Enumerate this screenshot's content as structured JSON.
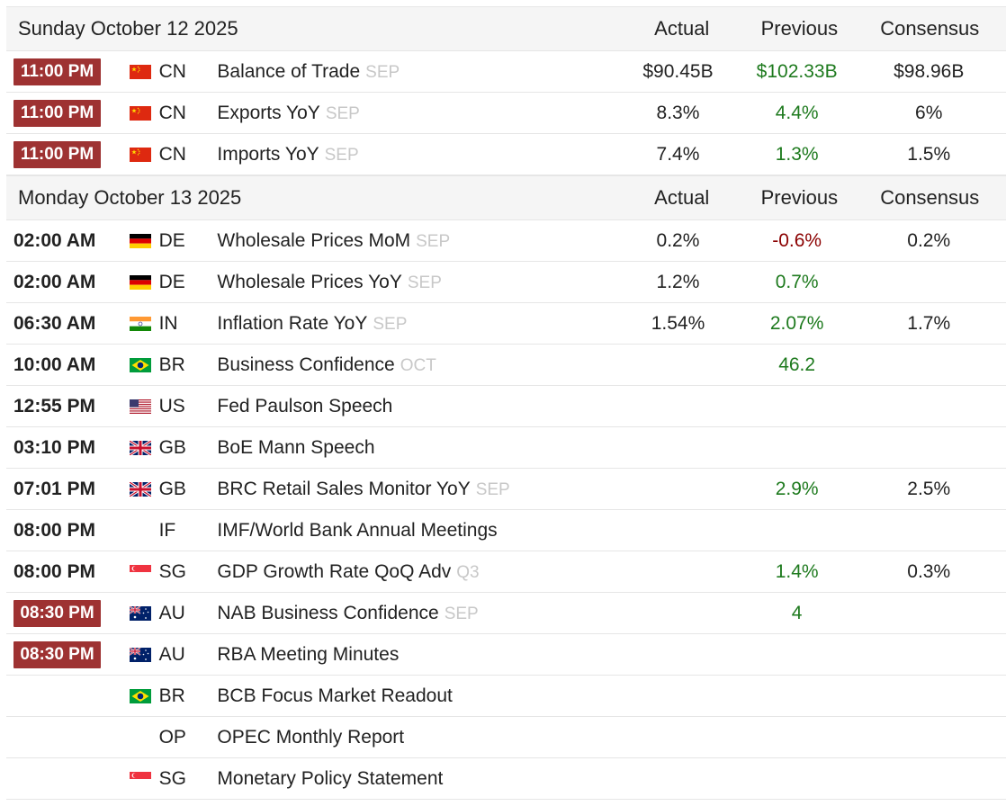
{
  "colors": {
    "badge_bg": "#9e3232",
    "positive": "#1e7a1e",
    "negative": "#8b0000",
    "reference": "#c8c8c8"
  },
  "days": [
    {
      "date": "Sunday October 12 2025",
      "col_actual": "Actual",
      "col_previous": "Previous",
      "col_consensus": "Consensus",
      "events": [
        {
          "time": "11:00 PM",
          "highlight": true,
          "flag": "cn-flag-icon",
          "country": "CN",
          "event": "Balance of Trade",
          "ref": "SEP",
          "actual": "$90.45B",
          "previous": "$102.33B",
          "previous_trend": "green",
          "consensus": "$98.96B"
        },
        {
          "time": "11:00 PM",
          "highlight": true,
          "flag": "cn-flag-icon",
          "country": "CN",
          "event": "Exports YoY",
          "ref": "SEP",
          "actual": "8.3%",
          "previous": "4.4%",
          "previous_trend": "green",
          "consensus": "6%"
        },
        {
          "time": "11:00 PM",
          "highlight": true,
          "flag": "cn-flag-icon",
          "country": "CN",
          "event": "Imports YoY",
          "ref": "SEP",
          "actual": "7.4%",
          "previous": "1.3%",
          "previous_trend": "green",
          "consensus": "1.5%"
        }
      ]
    },
    {
      "date": "Monday October 13 2025",
      "col_actual": "Actual",
      "col_previous": "Previous",
      "col_consensus": "Consensus",
      "events": [
        {
          "time": "02:00 AM",
          "highlight": false,
          "flag": "de-flag-icon",
          "country": "DE",
          "event": "Wholesale Prices MoM",
          "ref": "SEP",
          "actual": "0.2%",
          "previous": "-0.6%",
          "previous_trend": "red",
          "consensus": "0.2%"
        },
        {
          "time": "02:00 AM",
          "highlight": false,
          "flag": "de-flag-icon",
          "country": "DE",
          "event": "Wholesale Prices YoY",
          "ref": "SEP",
          "actual": "1.2%",
          "previous": "0.7%",
          "previous_trend": "green",
          "consensus": ""
        },
        {
          "time": "06:30 AM",
          "highlight": false,
          "flag": "in-flag-icon",
          "country": "IN",
          "event": "Inflation Rate YoY",
          "ref": "SEP",
          "actual": "1.54%",
          "previous": "2.07%",
          "previous_trend": "green",
          "consensus": "1.7%"
        },
        {
          "time": "10:00 AM",
          "highlight": false,
          "flag": "br-flag-icon",
          "country": "BR",
          "event": "Business Confidence",
          "ref": "OCT",
          "actual": "",
          "previous": "46.2",
          "previous_trend": "green",
          "consensus": ""
        },
        {
          "time": "12:55 PM",
          "highlight": false,
          "flag": "us-flag-icon",
          "country": "US",
          "event": "Fed Paulson Speech",
          "ref": "",
          "actual": "",
          "previous": "",
          "previous_trend": "",
          "consensus": ""
        },
        {
          "time": "03:10 PM",
          "highlight": false,
          "flag": "gb-flag-icon",
          "country": "GB",
          "event": "BoE Mann Speech",
          "ref": "",
          "actual": "",
          "previous": "",
          "previous_trend": "",
          "consensus": ""
        },
        {
          "time": "07:01 PM",
          "highlight": false,
          "flag": "gb-flag-icon",
          "country": "GB",
          "event": "BRC Retail Sales Monitor YoY",
          "ref": "SEP",
          "actual": "",
          "previous": "2.9%",
          "previous_trend": "green",
          "consensus": "2.5%"
        },
        {
          "time": "08:00 PM",
          "highlight": false,
          "flag": "",
          "country": "IF",
          "event": "IMF/World Bank Annual Meetings",
          "ref": "",
          "actual": "",
          "previous": "",
          "previous_trend": "",
          "consensus": ""
        },
        {
          "time": "08:00 PM",
          "highlight": false,
          "flag": "sg-flag-icon",
          "country": "SG",
          "event": "GDP Growth Rate QoQ Adv",
          "ref": "Q3",
          "actual": "",
          "previous": "1.4%",
          "previous_trend": "green",
          "consensus": "0.3%"
        },
        {
          "time": "08:30 PM",
          "highlight": true,
          "flag": "au-flag-icon",
          "country": "AU",
          "event": "NAB Business Confidence",
          "ref": "SEP",
          "actual": "",
          "previous": "4",
          "previous_trend": "green",
          "consensus": ""
        },
        {
          "time": "08:30 PM",
          "highlight": true,
          "flag": "au-flag-icon",
          "country": "AU",
          "event": "RBA Meeting Minutes",
          "ref": "",
          "actual": "",
          "previous": "",
          "previous_trend": "",
          "consensus": ""
        },
        {
          "time": "",
          "highlight": false,
          "flag": "br-flag-icon",
          "country": "BR",
          "event": "BCB Focus Market Readout",
          "ref": "",
          "actual": "",
          "previous": "",
          "previous_trend": "",
          "consensus": ""
        },
        {
          "time": "",
          "highlight": false,
          "flag": "",
          "country": "OP",
          "event": "OPEC Monthly Report",
          "ref": "",
          "actual": "",
          "previous": "",
          "previous_trend": "",
          "consensus": ""
        },
        {
          "time": "",
          "highlight": false,
          "flag": "sg-flag-icon",
          "country": "SG",
          "event": "Monetary Policy Statement",
          "ref": "",
          "actual": "",
          "previous": "",
          "previous_trend": "",
          "consensus": ""
        }
      ]
    }
  ]
}
